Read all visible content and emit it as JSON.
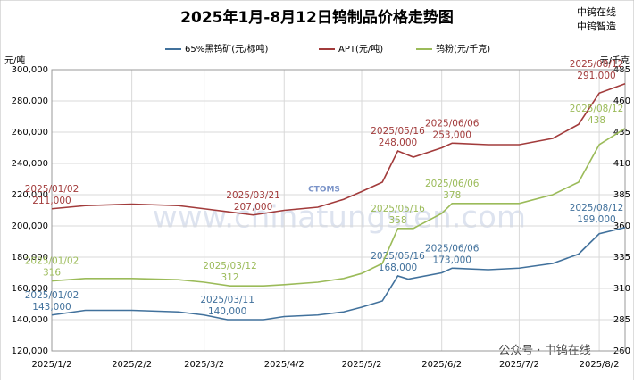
{
  "chart_data": {
    "type": "line",
    "title": "2025年1月-8月12日钨制品价格走势图",
    "brand_lines": [
      "中钨在线",
      "中钨智造"
    ],
    "watermark": "www.chinatungsten.com",
    "logo_text": "CTOMS",
    "footer_text": "公众号 · 中钨在线",
    "ylabel": "元/吨",
    "y2label": "元/千克",
    "xlim": [
      "2025/1/2",
      "2025/8/12"
    ],
    "xticks": [
      "2025/1/2",
      "2025/2/2",
      "2025/3/2",
      "2025/4/2",
      "2025/5/2",
      "2025/6/2",
      "2025/7/2",
      "2025/8/2"
    ],
    "ylim": [
      120000,
      300000
    ],
    "yticks": [
      {
        "value": 120000,
        "label": "120,000"
      },
      {
        "value": 140000,
        "label": "140,000"
      },
      {
        "value": 160000,
        "label": "160,000"
      },
      {
        "value": 180000,
        "label": "180,000"
      },
      {
        "value": 200000,
        "label": "200,000"
      },
      {
        "value": 220000,
        "label": "220,000"
      },
      {
        "value": 240000,
        "label": "240,000"
      },
      {
        "value": 260000,
        "label": "260,000"
      },
      {
        "value": 280000,
        "label": "280,000"
      },
      {
        "value": 300000,
        "label": "300,000"
      }
    ],
    "y2lim": [
      260,
      485
    ],
    "y2ticks": [
      260,
      285,
      310,
      335,
      360,
      385,
      410,
      435,
      460,
      485
    ],
    "grid": true,
    "series": [
      {
        "name": "65%黑钨矿(元/标吨)",
        "color": "#41719c",
        "x": [
          "2025/1/2",
          "2025/1/15",
          "2025/2/2",
          "2025/2/20",
          "2025/3/2",
          "2025/3/11",
          "2025/3/25",
          "2025/4/2",
          "2025/4/15",
          "2025/4/25",
          "2025/5/2",
          "2025/5/10",
          "2025/5/16",
          "2025/5/20",
          "2025/6/2",
          "2025/6/6",
          "2025/6/20",
          "2025/7/2",
          "2025/7/15",
          "2025/7/25",
          "2025/8/2",
          "2025/8/12"
        ],
        "values": [
          143000,
          146000,
          146000,
          145000,
          143000,
          140000,
          140000,
          142000,
          143000,
          145000,
          148000,
          152000,
          168000,
          166000,
          170000,
          173000,
          172000,
          173000,
          176000,
          182000,
          195000,
          199000
        ],
        "value_labels": [
          "143,000",
          null,
          null,
          null,
          null,
          "140,000",
          null,
          null,
          null,
          null,
          null,
          null,
          "168,000",
          null,
          null,
          "173,000",
          null,
          null,
          null,
          null,
          null,
          "199,000"
        ],
        "date_labels": [
          "2025/01/02",
          null,
          null,
          null,
          null,
          "2025/03/11",
          null,
          null,
          null,
          null,
          null,
          null,
          "2025/05/16",
          null,
          null,
          "2025/06/06",
          null,
          null,
          null,
          null,
          null,
          "2025/08/12"
        ]
      },
      {
        "name": "APT(元/吨)",
        "color": "#a23b3b",
        "x": [
          "2025/1/2",
          "2025/1/15",
          "2025/2/2",
          "2025/2/20",
          "2025/3/2",
          "2025/3/21",
          "2025/4/2",
          "2025/4/15",
          "2025/4/25",
          "2025/5/2",
          "2025/5/10",
          "2025/5/16",
          "2025/5/22",
          "2025/6/2",
          "2025/6/6",
          "2025/6/20",
          "2025/7/2",
          "2025/7/15",
          "2025/7/25",
          "2025/8/2",
          "2025/8/12"
        ],
        "values": [
          211000,
          213000,
          214000,
          213000,
          211000,
          207000,
          210000,
          212000,
          217000,
          222000,
          228000,
          248000,
          244000,
          250000,
          253000,
          252000,
          252000,
          256000,
          265000,
          285000,
          291000
        ],
        "value_labels": [
          "211,000",
          null,
          null,
          null,
          null,
          "207,000",
          null,
          null,
          null,
          null,
          null,
          "248,000",
          null,
          null,
          "253,000",
          null,
          null,
          null,
          null,
          null,
          "291,000"
        ],
        "date_labels": [
          "2025/01/02",
          null,
          null,
          null,
          null,
          "2025/03/21",
          null,
          null,
          null,
          null,
          null,
          "2025/05/16",
          null,
          null,
          "2025/06/06",
          null,
          null,
          null,
          null,
          null,
          "2025/08/12"
        ]
      },
      {
        "name": "钨粉(元/千克)",
        "color": "#9bbb59",
        "axis": "y2",
        "x": [
          "2025/1/2",
          "2025/1/15",
          "2025/2/2",
          "2025/2/20",
          "2025/3/2",
          "2025/3/12",
          "2025/3/25",
          "2025/4/2",
          "2025/4/15",
          "2025/4/25",
          "2025/5/2",
          "2025/5/10",
          "2025/5/16",
          "2025/5/22",
          "2025/6/2",
          "2025/6/6",
          "2025/6/20",
          "2025/7/2",
          "2025/7/15",
          "2025/7/25",
          "2025/8/2",
          "2025/8/12"
        ],
        "values": [
          316,
          318,
          318,
          317,
          315,
          312,
          312,
          313,
          315,
          318,
          322,
          330,
          358,
          358,
          370,
          378,
          378,
          378,
          385,
          395,
          425,
          438
        ],
        "value_labels": [
          "316",
          null,
          null,
          null,
          null,
          "312",
          null,
          null,
          null,
          null,
          null,
          null,
          "358",
          null,
          null,
          "378",
          null,
          null,
          null,
          null,
          null,
          "438"
        ],
        "date_labels": [
          "2025/01/02",
          null,
          null,
          null,
          null,
          "2025/03/12",
          null,
          null,
          null,
          null,
          null,
          null,
          "2025/05/16",
          null,
          null,
          "2025/06/06",
          null,
          null,
          null,
          null,
          null,
          "2025/08/12"
        ]
      }
    ]
  }
}
